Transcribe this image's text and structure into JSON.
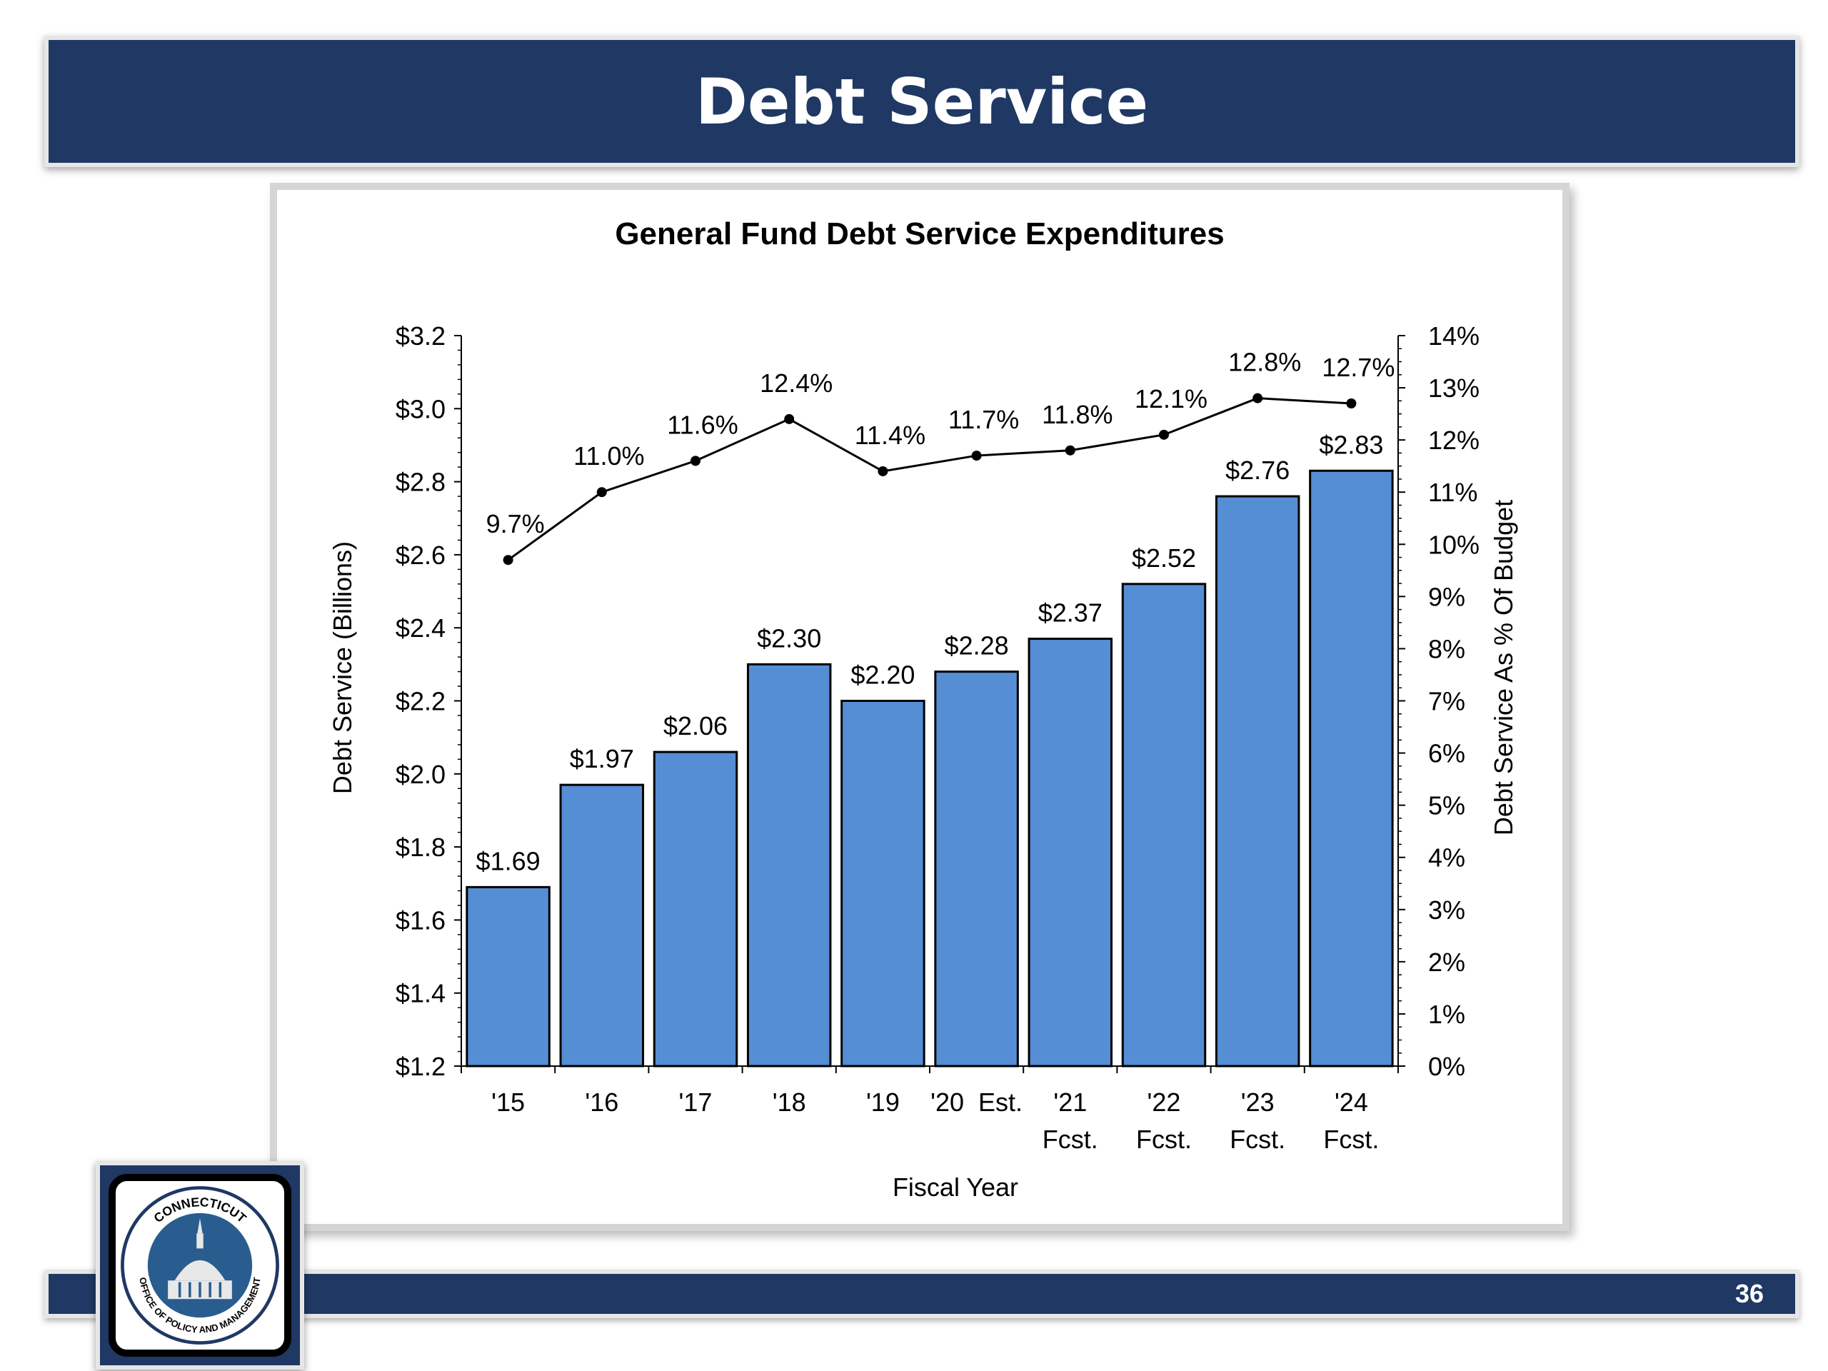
{
  "slide": {
    "title": "Debt Service",
    "page_number": "36",
    "seal_text_top": "CONNECTICUT",
    "seal_text_bottom": "OFFICE OF POLICY AND MANAGEMENT"
  },
  "colors": {
    "banner": "#1f3864",
    "bar_fill": "#558ed5",
    "line": "#000000"
  },
  "chart_data": {
    "type": "bar",
    "title": "General Fund Debt Service Expenditures",
    "xlabel": "Fiscal Year",
    "ylabel": "Debt Service  (Billions)",
    "y2label": "Debt Service As % Of Budget",
    "categories": [
      [
        "'15"
      ],
      [
        "'16"
      ],
      [
        "'17"
      ],
      [
        "'18"
      ],
      [
        "'19"
      ],
      [
        "'20  Est."
      ],
      [
        "'21",
        "Fcst."
      ],
      [
        "'22",
        "Fcst."
      ],
      [
        "'23",
        "Fcst."
      ],
      [
        "'24",
        "Fcst."
      ]
    ],
    "ylim": [
      1.2,
      3.2
    ],
    "y_ticks": [
      1.2,
      1.4,
      1.6,
      1.8,
      2.0,
      2.2,
      2.4,
      2.6,
      2.8,
      3.0,
      3.2
    ],
    "y_tick_labels": [
      "$1.2",
      "$1.4",
      "$1.6",
      "$1.8",
      "$2.0",
      "$2.2",
      "$2.4",
      "$2.6",
      "$2.8",
      "$3.0",
      "$3.2"
    ],
    "y2lim": [
      0,
      14
    ],
    "y2_ticks": [
      0,
      1,
      2,
      3,
      4,
      5,
      6,
      7,
      8,
      9,
      10,
      11,
      12,
      13,
      14
    ],
    "y2_tick_labels": [
      "0%",
      "1%",
      "2%",
      "3%",
      "4%",
      "5%",
      "6%",
      "7%",
      "8%",
      "9%",
      "10%",
      "11%",
      "12%",
      "13%",
      "14%"
    ],
    "series": [
      {
        "type": "bar",
        "axis": "left",
        "values": [
          1.69,
          1.97,
          2.06,
          2.3,
          2.2,
          2.28,
          2.37,
          2.52,
          2.76,
          2.83
        ],
        "labels": [
          "$1.69",
          "$1.97",
          "$2.06",
          "$2.30",
          "$2.20",
          "$2.28",
          "$2.37",
          "$2.52",
          "$2.76",
          "$2.83"
        ]
      },
      {
        "type": "line",
        "axis": "right",
        "values": [
          9.7,
          11.0,
          11.6,
          12.4,
          11.4,
          11.7,
          11.8,
          12.1,
          12.8,
          12.7
        ],
        "labels": [
          "9.7%",
          "11.0%",
          "11.6%",
          "12.4%",
          "11.4%",
          "11.7%",
          "11.8%",
          "12.1%",
          "12.8%",
          "12.7%"
        ]
      }
    ]
  }
}
